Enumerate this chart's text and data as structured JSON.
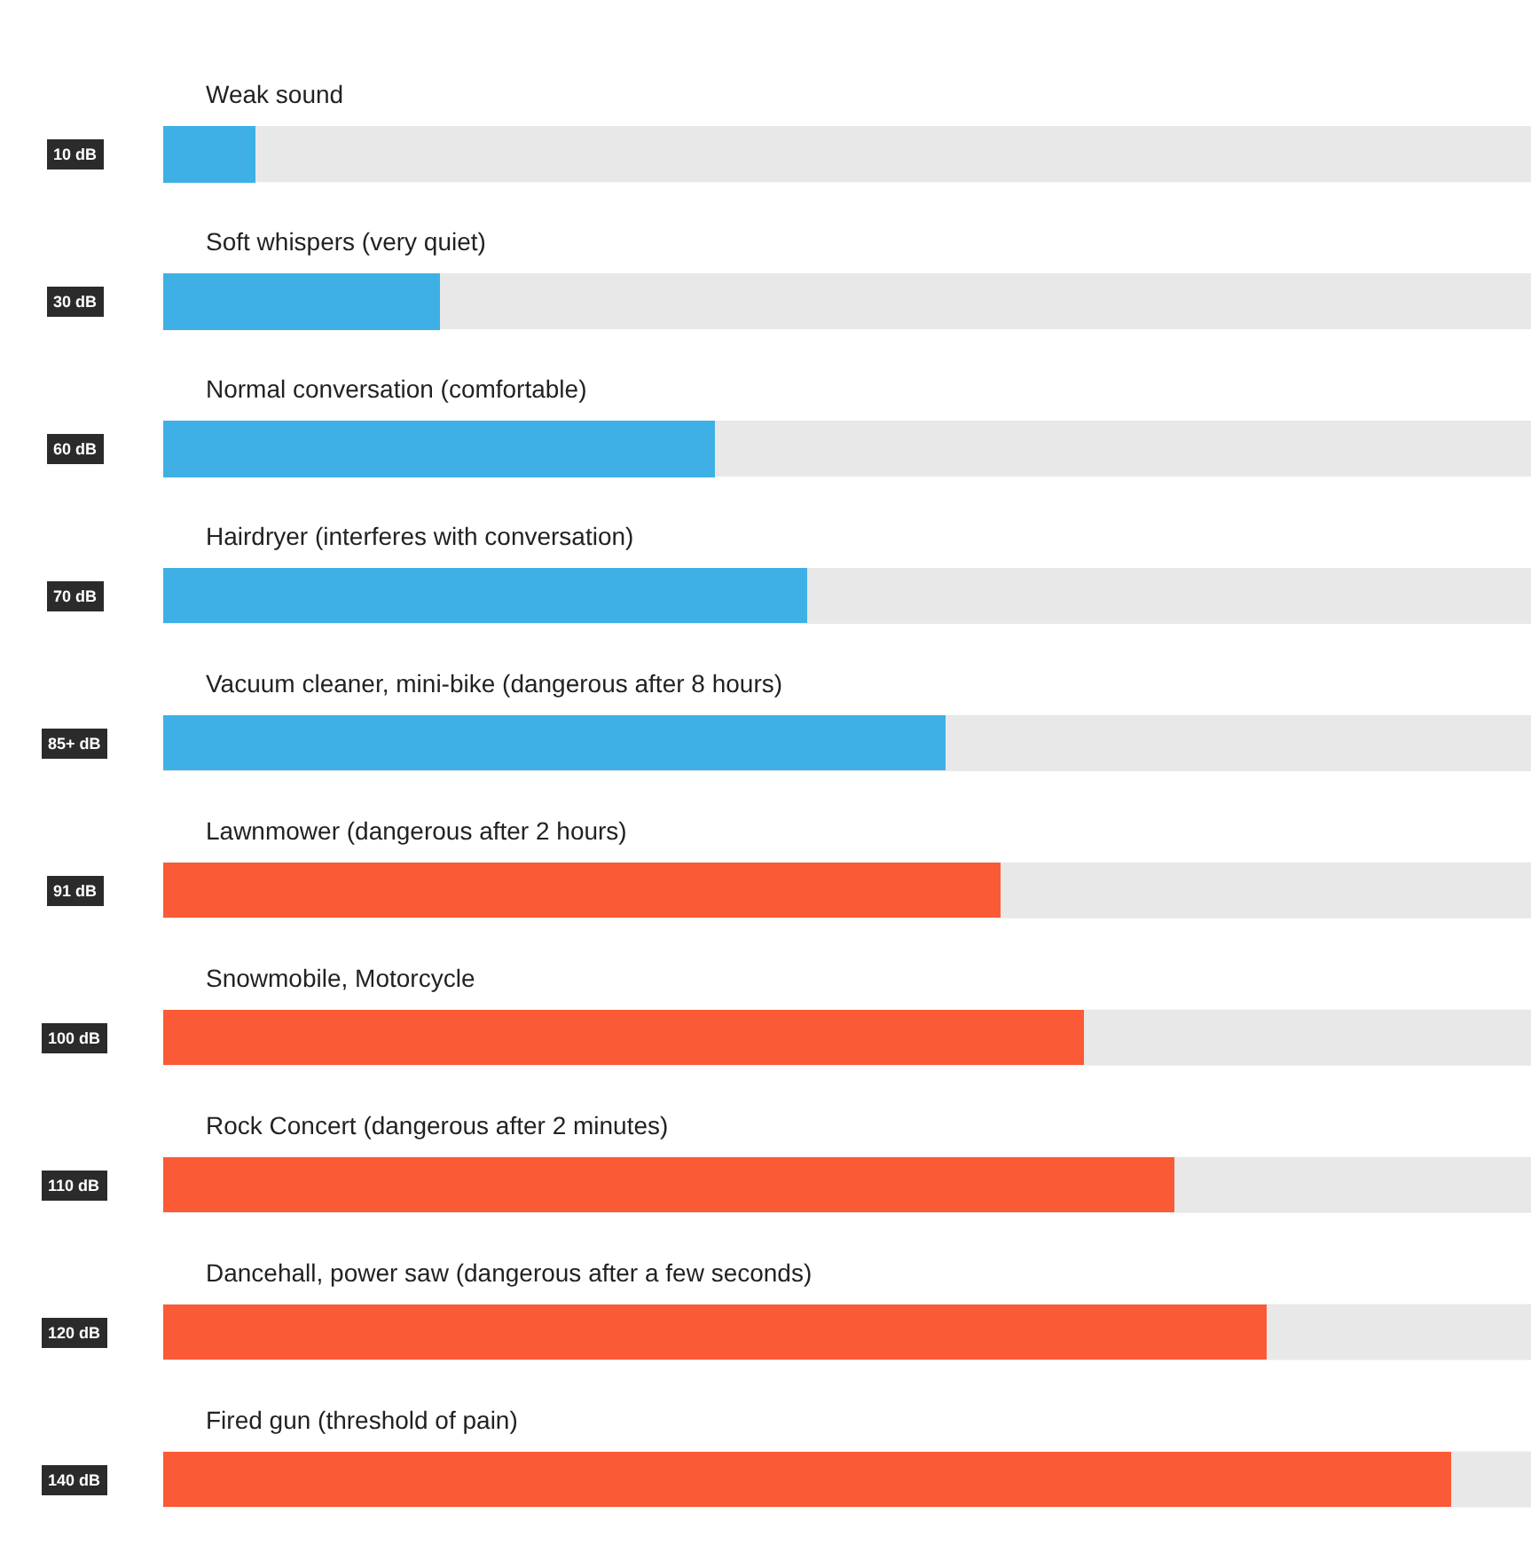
{
  "chart_data": {
    "type": "bar",
    "orientation": "horizontal",
    "tick_labels": false,
    "categories": [
      "Weak sound",
      "Soft whispers (very quiet)",
      "Normal conversation (comfortable)",
      "Hairdryer (interferes with conversation)",
      "Vacuum cleaner, mini-bike (dangerous after 8 hours)",
      "Lawnmower (dangerous after 2 hours)",
      "Snowmobile, Motorcycle",
      "Rock Concert (dangerous after 2 minutes)",
      "Dancehall, power saw (dangerous after a few seconds)",
      "Fired gun (threshold of pain)"
    ],
    "values": [
      10,
      30,
      60,
      70,
      85,
      91,
      100,
      110,
      120,
      140
    ],
    "colors": [
      "#3fb0e6",
      "#3fb0e6",
      "#3fb0e6",
      "#3fb0e6",
      "#3fb0e6",
      "#fa5a35",
      "#fa5a35",
      "#fa5a35",
      "#fa5a35",
      "#fa5a35"
    ],
    "value_labels": [
      "10 dB",
      "30 dB",
      "60 dB",
      "70 dB",
      "85+ dB",
      "91 dB",
      "100 dB",
      "110 dB",
      "120 dB",
      "140 dB"
    ]
  }
}
